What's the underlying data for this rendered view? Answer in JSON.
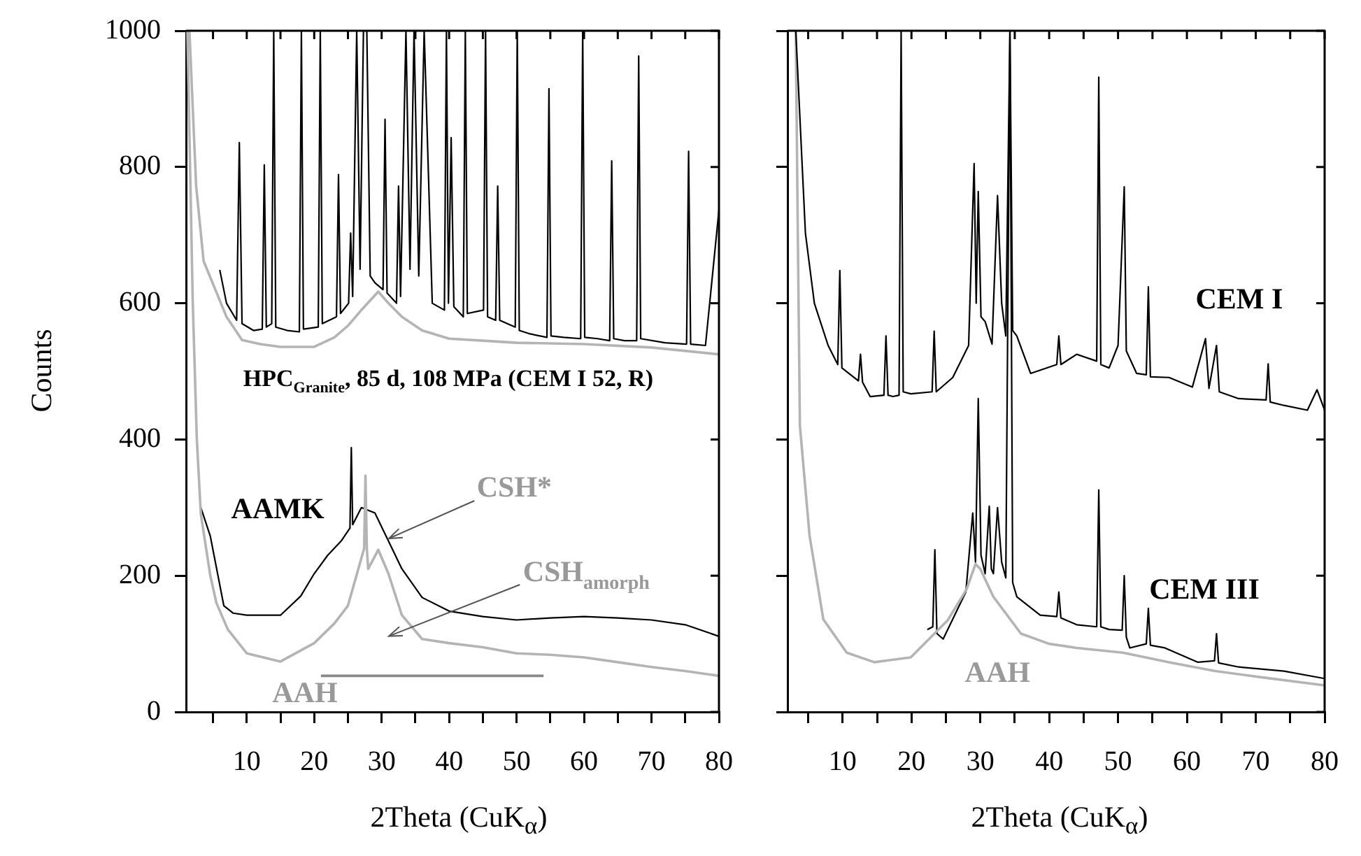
{
  "chart_data": [
    {
      "type": "line",
      "xlabel": "2Theta (CuK$_{α}$)",
      "ylabel": "Counts",
      "xlim": [
        1,
        80
      ],
      "ylim": [
        0,
        1000
      ],
      "xticks": [
        {
          "value": 5,
          "label": null
        },
        10,
        {
          "value": 15,
          "label": null
        },
        20,
        {
          "value": 25,
          "label": null
        },
        30,
        {
          "value": 35,
          "label": null
        },
        40,
        {
          "value": 45,
          "label": null
        },
        50,
        {
          "value": 55,
          "label": null
        },
        60,
        {
          "value": 65,
          "label": null
        },
        70,
        {
          "value": 75,
          "label": null
        },
        80
      ],
      "yticks": [
        0,
        200,
        400,
        600,
        800,
        1000
      ],
      "grid": false,
      "annotations": [
        "HPC$_{Granite}$, 85 d, 108 MPa (CEM I 52, R)",
        "AAMK",
        {
          "text": "CSH*",
          "x": 31,
          "y": 255
        },
        "CSH$_{amorph}$",
        "AAH"
      ],
      "series": [
        {
          "color": "#b4b4b4",
          "x": [
            1.5,
            2.5,
            3.6,
            5.3,
            7,
            9.3,
            12,
            15,
            20,
            23,
            25,
            27,
            29.5,
            31,
            33,
            36,
            40,
            45,
            50,
            60,
            70,
            80
          ],
          "values": [
            1000,
            772,
            662,
            621,
            580,
            546,
            540,
            536,
            536,
            550,
            567,
            590,
            617,
            600,
            580,
            560,
            548,
            545,
            542,
            540,
            535,
            525
          ]
        },
        {
          "color": "#000000",
          "x": [
            6,
            7,
            8.5,
            8.9,
            9.3,
            11,
            12.3,
            12.6,
            12.9,
            13.7,
            14.0,
            14.3,
            16,
            17.8,
            18.1,
            18.4,
            20.6,
            20.9,
            21.2,
            23.3,
            23.6,
            23.9,
            25.1,
            25.4,
            25.7,
            26.3,
            26.8,
            27.3,
            27.8,
            28.3,
            29,
            30.2,
            30.5,
            30.8,
            32.2,
            32.5,
            32.8,
            33.6,
            34.2,
            34.8,
            35.5,
            36.3,
            37.5,
            39.3,
            39.6,
            39.9,
            40.3,
            40.7,
            42.1,
            42.4,
            42.7,
            45.1,
            45.4,
            45.7,
            46.9,
            47.2,
            47.5,
            49.8,
            50.1,
            50.4,
            52,
            54.5,
            54.8,
            55.1,
            57,
            59.5,
            59.8,
            60.1,
            62,
            63.8,
            64.1,
            64.4,
            66,
            67.8,
            68.1,
            68.4,
            72,
            75.2,
            75.5,
            75.8,
            78,
            80
          ],
          "values": [
            649,
            600,
            575,
            836,
            570,
            560,
            562,
            803,
            565,
            570,
            1000,
            565,
            560,
            558,
            1000,
            562,
            565,
            1000,
            570,
            580,
            789,
            585,
            600,
            703,
            610,
            1000,
            650,
            1000,
            1000,
            640,
            630,
            620,
            870,
            615,
            600,
            772,
            610,
            1000,
            650,
            1000,
            640,
            1000,
            600,
            590,
            1000,
            600,
            843,
            595,
            580,
            1000,
            585,
            590,
            1000,
            580,
            575,
            772,
            575,
            565,
            1000,
            560,
            555,
            550,
            915,
            552,
            550,
            548,
            1000,
            550,
            548,
            545,
            809,
            548,
            545,
            545,
            963,
            548,
            542,
            540,
            823,
            540,
            538,
            737
          ]
        },
        {
          "color": "#b4b4b4",
          "x": [
            1.2,
            2.0,
            2.6,
            3.2,
            4.6,
            5.5,
            7.2,
            10,
            15,
            20,
            23,
            25,
            27.4,
            27.6,
            27.8,
            28,
            29.5,
            31,
            33,
            36,
            40,
            45,
            50,
            55,
            60,
            65,
            70,
            75,
            80
          ],
          "values": [
            1000,
            600,
            400,
            290,
            200,
            160,
            121,
            86,
            74,
            101,
            130,
            156,
            240,
            347,
            240,
            210,
            238,
            203,
            142,
            107,
            101,
            95,
            86,
            84,
            80,
            73,
            66,
            60,
            53
          ]
        },
        {
          "color": "#000000",
          "x": [
            3.2,
            4.6,
            6.6,
            8,
            10,
            15,
            18,
            20,
            22,
            24,
            25.3,
            25.5,
            25.7,
            27,
            29,
            31,
            33,
            36,
            40,
            45,
            50,
            55,
            60,
            65,
            70,
            75,
            80
          ],
          "values": [
            300,
            258,
            156,
            145,
            142,
            142,
            170,
            203,
            230,
            251,
            270,
            388,
            275,
            300,
            292,
            251,
            210,
            168,
            148,
            140,
            135,
            138,
            140,
            138,
            135,
            128,
            111
          ]
        },
        {
          "color": "#888888",
          "x": [
            21,
            54
          ],
          "values": [
            53,
            53
          ]
        }
      ]
    },
    {
      "type": "line",
      "xlabel": "2Theta (CuK$_{α}$)",
      "xlim": [
        2,
        80
      ],
      "ylim": [
        0,
        1000
      ],
      "xticks": [
        {
          "value": 5,
          "label": null
        },
        10,
        {
          "value": 15,
          "label": null
        },
        20,
        {
          "value": 25,
          "label": null
        },
        30,
        {
          "value": 35,
          "label": null
        },
        40,
        {
          "value": 45,
          "label": null
        },
        50,
        {
          "value": 55,
          "label": null
        },
        60,
        {
          "value": 65,
          "label": null
        },
        70,
        {
          "value": 75,
          "label": null
        },
        80
      ],
      "yticks": [
        0,
        200,
        400,
        600,
        800,
        1000
      ],
      "tick_labels": "x",
      "grid": false,
      "annotations": [
        "CEM I",
        "CEM III",
        "AAH"
      ],
      "series": [
        {
          "color": "#000000",
          "x": [
            3.2,
            4.6,
            5.9,
            7.9,
            9.3,
            9.6,
            9.9,
            12.3,
            12.6,
            12.9,
            14,
            16,
            16.3,
            16.6,
            17.3,
            18.2,
            18.5,
            18.8,
            19.9,
            23,
            23.3,
            23.6,
            26,
            28.3,
            29.1,
            29.4,
            29.7,
            30.1,
            30.7,
            31.7,
            32.5,
            33.1,
            33.7,
            34.3,
            34.7,
            35.3,
            37.3,
            41.1,
            41.4,
            41.7,
            44,
            46.9,
            47.2,
            47.5,
            48.7,
            50,
            50.9,
            51.2,
            52.7,
            54.1,
            54.4,
            54.7,
            57.4,
            60.8,
            62.7,
            63.2,
            64.3,
            64.7,
            67.5,
            71.5,
            71.8,
            72.1,
            74.1,
            77.5,
            78.9,
            80
          ],
          "values": [
            1000,
            703,
            600,
            538,
            510,
            648,
            505,
            486,
            525,
            484,
            463,
            465,
            552,
            465,
            463,
            465,
            1000,
            470,
            467,
            470,
            559,
            470,
            491,
            538,
            805,
            600,
            764,
            580,
            573,
            540,
            758,
            600,
            552,
            1000,
            560,
            552,
            497,
            510,
            552,
            510,
            525,
            515,
            932,
            510,
            505,
            538,
            771,
            530,
            497,
            495,
            624,
            492,
            491,
            477,
            548,
            475,
            538,
            470,
            460,
            458,
            511,
            455,
            450,
            443,
            473,
            443
          ]
        },
        {
          "color": "#b4b4b4",
          "x": [
            3.2,
            3.5,
            3.8,
            5.2,
            7.2,
            10.6,
            14.6,
            19.9,
            25.3,
            28,
            29.3,
            30,
            31.9,
            35.9,
            40,
            44,
            50.7,
            57.4,
            64.1,
            70,
            80
          ],
          "values": [
            1000,
            700,
            420,
            259,
            136,
            87,
            73,
            80,
            135,
            180,
            217,
            210,
            169,
            115,
            100,
            94,
            87,
            73,
            60,
            52,
            39
          ]
        },
        {
          "color": "#000000",
          "x": [
            22.3,
            23.1,
            23.4,
            23.7,
            24.6,
            27.9,
            28.9,
            29.3,
            29.7,
            30.1,
            30.7,
            31.3,
            31.6,
            31.9,
            32.5,
            33.1,
            33.7,
            34.3,
            34.7,
            35.3,
            38.7,
            41.1,
            41.4,
            41.7,
            44,
            46.9,
            47.2,
            47.5,
            48.7,
            50.6,
            50.9,
            51.2,
            51.7,
            54.1,
            54.4,
            54.7,
            56.8,
            61.6,
            64,
            64.3,
            64.6,
            67.5,
            74.1,
            80
          ],
          "values": [
            121,
            125,
            238,
            115,
            107,
            176,
            292,
            220,
            460,
            230,
            203,
            302,
            210,
            203,
            300,
            220,
            197,
            1000,
            190,
            169,
            142,
            140,
            176,
            138,
            128,
            125,
            326,
            125,
            121,
            120,
            200,
            110,
            94,
            100,
            152,
            98,
            94,
            73,
            75,
            115,
            72,
            66,
            60,
            49
          ]
        }
      ]
    }
  ]
}
